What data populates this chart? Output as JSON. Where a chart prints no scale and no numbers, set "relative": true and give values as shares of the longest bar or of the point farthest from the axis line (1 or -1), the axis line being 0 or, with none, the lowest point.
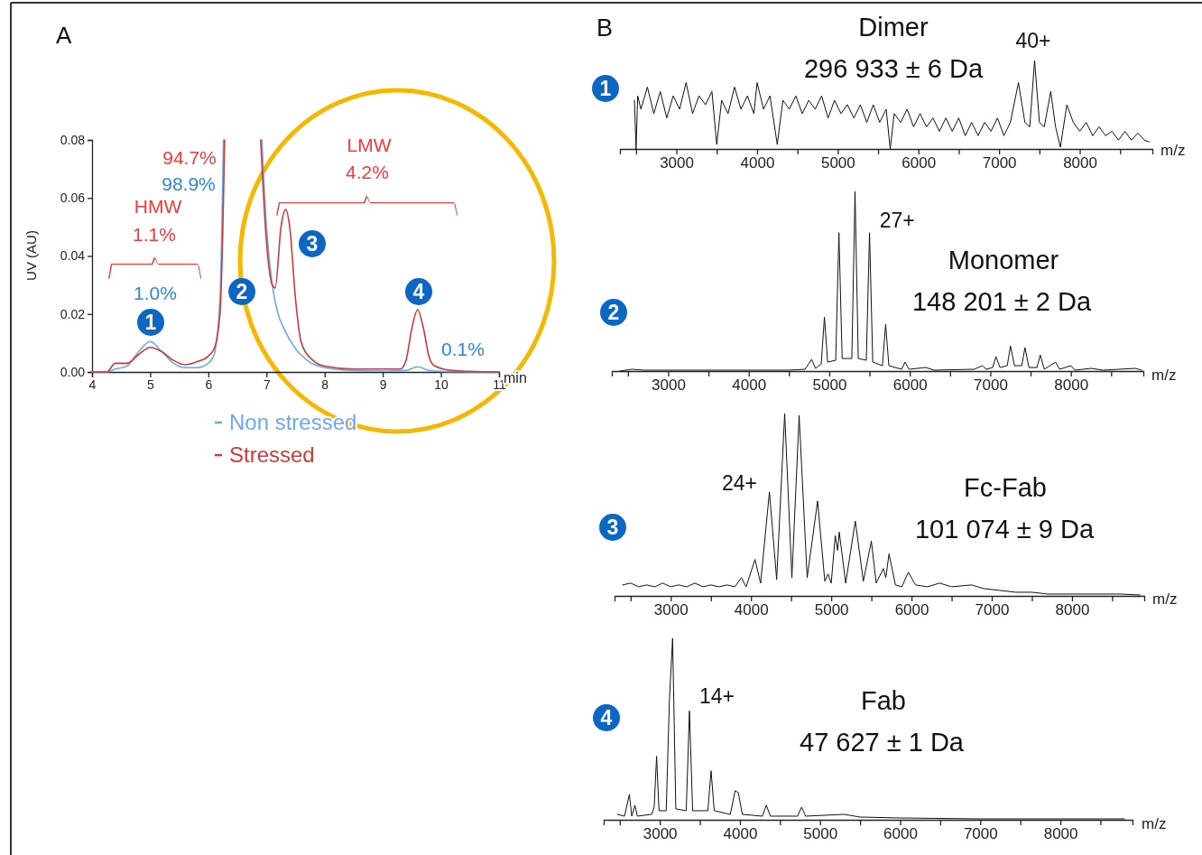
{
  "chart_data": [
    {
      "type": "line",
      "title": "A",
      "xlabel": "min",
      "ylabel": "UV (AU)",
      "xlim": [
        4,
        11
      ],
      "xticks": [
        4,
        5,
        6,
        7,
        8,
        9,
        10,
        11
      ],
      "ylim": [
        0,
        0.08
      ],
      "yticks": [
        {
          "value": 0,
          "label": "0.00"
        },
        {
          "value": 0.02,
          "label": "0.02"
        },
        {
          "value": 0.04,
          "label": "0.04"
        },
        {
          "value": 0.06,
          "label": "0.06"
        },
        {
          "value": 0.08,
          "label": "0.08"
        }
      ],
      "legend": "bottom",
      "series": [
        {
          "name": "Non stressed",
          "color": "#6fa8e6",
          "x": [
            4,
            4.25,
            4.4,
            4.6,
            4.8,
            5.0,
            5.2,
            5.4,
            5.6,
            5.8,
            6.0,
            6.1,
            6.2,
            6.26,
            6.6,
            6.92,
            7.0,
            7.1,
            7.2,
            7.3,
            7.5,
            7.7,
            8.0,
            8.5,
            9.0,
            9.4,
            9.6,
            9.8,
            10,
            11
          ],
          "values": [
            0,
            0,
            0.001,
            0.002,
            0.007,
            0.0105,
            0.007,
            0.003,
            0.0015,
            0.0015,
            0.003,
            0.006,
            0.025,
            0.08,
            null,
            0.08,
            0.05,
            0.03,
            0.02,
            0.015,
            0.008,
            0.004,
            0.0015,
            0.0005,
            0.0003,
            0.0005,
            0.0018,
            0.0005,
            0.0002,
            0
          ]
        },
        {
          "name": "Stressed",
          "color": "#c83c3c",
          "x": [
            4,
            4.25,
            4.4,
            4.6,
            4.8,
            5.0,
            5.2,
            5.4,
            5.6,
            5.8,
            6.0,
            6.1,
            6.2,
            6.25,
            6.28,
            6.6,
            6.9,
            7.0,
            7.1,
            7.15,
            7.25,
            7.33,
            7.4,
            7.5,
            7.6,
            7.8,
            8.0,
            8.5,
            9.0,
            9.3,
            9.4,
            9.5,
            9.6,
            9.7,
            9.8,
            9.9,
            10.2,
            11
          ],
          "values": [
            0,
            0,
            0.003,
            0.003,
            0.006,
            0.0085,
            0.007,
            0.004,
            0.0025,
            0.0035,
            0.0055,
            0.008,
            0.02,
            0.05,
            0.08,
            null,
            0.08,
            0.045,
            0.03,
            0.029,
            0.05,
            0.056,
            0.05,
            0.025,
            0.01,
            0.004,
            0.002,
            0.001,
            0.001,
            0.001,
            0.004,
            0.015,
            0.0215,
            0.015,
            0.005,
            0.002,
            0.0005,
            0
          ]
        }
      ],
      "annotations": [
        "94.7%",
        "98.9%",
        "HMW",
        "1.1%",
        "1.0%",
        "1",
        "2",
        "3",
        "4",
        "LMW",
        "4.2%",
        "0.1%"
      ]
    },
    {
      "type": "line",
      "relative": true,
      "title": "Dimer",
      "subtitle": "296 933 ± 6 Da",
      "xlabel": "m/z",
      "xlim": [
        2300,
        8900
      ],
      "xticks": [
        {
          "value": 2500,
          "label": null
        },
        3000,
        {
          "value": 3500,
          "label": null
        },
        4000,
        {
          "value": 4500,
          "label": null
        },
        5000,
        {
          "value": 5500,
          "label": null
        },
        6000,
        {
          "value": 6500,
          "label": null
        },
        7000,
        {
          "value": 7500,
          "label": null
        },
        8000,
        {
          "value": 8500,
          "label": null
        }
      ],
      "series": [
        {
          "color": "#111111",
          "x": [
            2480,
            2500,
            2520,
            2560,
            2640,
            2720,
            2800,
            2880,
            2960,
            3040,
            3120,
            3200,
            3280,
            3360,
            3440,
            3500,
            3560,
            3640,
            3720,
            3800,
            3880,
            3960,
            4000,
            4080,
            4160,
            4250,
            4320,
            4400,
            4480,
            4560,
            4640,
            4720,
            4800,
            4880,
            4960,
            5040,
            5120,
            5200,
            5280,
            5360,
            5440,
            5520,
            5600,
            5650,
            5700,
            5780,
            5860,
            5940,
            6020,
            6100,
            6180,
            6260,
            6340,
            6420,
            6500,
            6580,
            6660,
            6740,
            6820,
            6900,
            6980,
            7060,
            7140,
            7240,
            7320,
            7380,
            7440,
            7500,
            7560,
            7640,
            7700,
            7760,
            7840,
            7920,
            8000,
            8080,
            8160,
            8240,
            8320,
            8400,
            8480,
            8560,
            8640,
            8720,
            8800,
            8860
          ],
          "values": [
            0.55,
            0.0,
            0.6,
            0.45,
            0.7,
            0.4,
            0.65,
            0.35,
            0.6,
            0.45,
            0.75,
            0.4,
            0.6,
            0.5,
            0.65,
            0.05,
            0.55,
            0.4,
            0.7,
            0.45,
            0.6,
            0.4,
            0.75,
            0.45,
            0.6,
            0.05,
            0.55,
            0.45,
            0.6,
            0.4,
            0.55,
            0.45,
            0.6,
            0.35,
            0.55,
            0.4,
            0.5,
            0.35,
            0.5,
            0.3,
            0.5,
            0.3,
            0.45,
            0.0,
            0.4,
            0.3,
            0.45,
            0.25,
            0.4,
            0.25,
            0.35,
            0.2,
            0.35,
            0.2,
            0.35,
            0.15,
            0.3,
            0.15,
            0.3,
            0.2,
            0.35,
            0.15,
            0.3,
            0.75,
            0.3,
            0.25,
            1.0,
            0.3,
            0.25,
            0.65,
            0.25,
            0.02,
            0.5,
            0.3,
            0.2,
            0.3,
            0.15,
            0.25,
            0.15,
            0.2,
            0.1,
            0.2,
            0.1,
            0.18,
            0.1,
            0.08
          ]
        }
      ],
      "annotations": [
        "B",
        "1",
        {
          "text": "40+",
          "x": 7424,
          "y": 1.0
        }
      ]
    },
    {
      "type": "line",
      "relative": true,
      "title": "Monomer",
      "subtitle": "148 201 ± 2 Da",
      "xlabel": "m/z",
      "xlim": [
        2300,
        8900
      ],
      "xticks": [
        {
          "value": 2500,
          "label": null
        },
        3000,
        {
          "value": 3500,
          "label": null
        },
        4000,
        {
          "value": 4500,
          "label": null
        },
        5000,
        {
          "value": 5500,
          "label": null
        },
        6000,
        {
          "value": 6500,
          "label": null
        },
        7000,
        {
          "value": 7500,
          "label": null
        },
        8000,
        {
          "value": 8500,
          "label": null
        }
      ],
      "series": [
        {
          "color": "#111111",
          "x": [
            2400,
            2550,
            2700,
            3000,
            3500,
            4000,
            4500,
            4700,
            4780,
            4830,
            4900,
            4940,
            4980,
            5080,
            5120,
            5160,
            5280,
            5320,
            5360,
            5460,
            5500,
            5540,
            5660,
            5700,
            5740,
            5900,
            5940,
            5990,
            6200,
            6300,
            6800,
            6900,
            6950,
            7030,
            7070,
            7120,
            7210,
            7250,
            7300,
            7390,
            7430,
            7480,
            7580,
            7620,
            7670,
            7810,
            7860,
            8000,
            8050,
            8250,
            8400,
            8800,
            8880
          ],
          "values": [
            0,
            0.01,
            0.005,
            0.005,
            0.005,
            0.005,
            0.005,
            0.01,
            0.065,
            0.015,
            0.04,
            0.3,
            0.05,
            0.06,
            0.77,
            0.07,
            0.07,
            1.0,
            0.07,
            0.06,
            0.77,
            0.05,
            0.03,
            0.26,
            0.03,
            0.01,
            0.05,
            0.01,
            0.02,
            0.005,
            0.01,
            0.03,
            0.01,
            0.02,
            0.08,
            0.02,
            0.03,
            0.14,
            0.03,
            0.03,
            0.13,
            0.02,
            0.02,
            0.09,
            0.01,
            0.05,
            0.01,
            0.03,
            0.005,
            0.015,
            0.005,
            0.015,
            0.005
          ]
        }
      ],
      "annotations": [
        "2",
        {
          "text": "27+",
          "x": 5490,
          "y": 0.77
        }
      ]
    },
    {
      "type": "line",
      "relative": true,
      "title": "Fc-Fab",
      "subtitle": "101 074 ± 9 Da",
      "xlabel": "m/z",
      "xlim": [
        2300,
        8900
      ],
      "xticks": [
        {
          "value": 2500,
          "label": null
        },
        3000,
        {
          "value": 3500,
          "label": null
        },
        4000,
        {
          "value": 4500,
          "label": null
        },
        5000,
        {
          "value": 5500,
          "label": null
        },
        6000,
        {
          "value": 6500,
          "label": null
        },
        7000,
        {
          "value": 7500,
          "label": null
        },
        8000,
        {
          "value": 8500,
          "label": null
        }
      ],
      "series": [
        {
          "color": "#111111",
          "x": [
            2400,
            2500,
            2600,
            2700,
            2800,
            2900,
            3000,
            3100,
            3200,
            3300,
            3400,
            3500,
            3600,
            3700,
            3800,
            3880,
            3940,
            4050,
            4120,
            4230,
            4320,
            4420,
            4510,
            4600,
            4700,
            4830,
            4920,
            4960,
            5000,
            5050,
            5080,
            5100,
            5180,
            5300,
            5400,
            5500,
            5560,
            5650,
            5680,
            5720,
            5800,
            5880,
            5960,
            6050,
            6200,
            6350,
            6500,
            6750,
            6900,
            7100,
            7300,
            7500,
            7700,
            8000,
            8300,
            8600,
            8850
          ],
          "values": [
            0.06,
            0.07,
            0.05,
            0.06,
            0.05,
            0.07,
            0.05,
            0.06,
            0.05,
            0.07,
            0.05,
            0.06,
            0.05,
            0.06,
            0.05,
            0.1,
            0.05,
            0.2,
            0.07,
            0.57,
            0.09,
            1.0,
            0.1,
            0.99,
            0.1,
            0.52,
            0.08,
            0.12,
            0.07,
            0.33,
            0.25,
            0.35,
            0.07,
            0.41,
            0.08,
            0.3,
            0.07,
            0.15,
            0.1,
            0.23,
            0.06,
            0.05,
            0.13,
            0.06,
            0.05,
            0.07,
            0.05,
            0.06,
            0.04,
            0.03,
            0.02,
            0.02,
            0.01,
            0.01,
            0.01,
            0.01,
            0.005
          ]
        }
      ],
      "annotations": [
        "3",
        {
          "text": "24+",
          "x": 4212,
          "y": 0.57
        }
      ]
    },
    {
      "type": "line",
      "relative": true,
      "title": "Fab",
      "subtitle": "47 627 ± 1 Da",
      "xlabel": "m/z",
      "xlim": [
        2300,
        8900
      ],
      "xticks": [
        {
          "value": 2500,
          "label": null
        },
        3000,
        {
          "value": 3500,
          "label": null
        },
        4000,
        {
          "value": 4500,
          "label": null
        },
        5000,
        {
          "value": 5500,
          "label": null
        },
        6000,
        {
          "value": 6500,
          "label": null
        },
        7000,
        {
          "value": 7500,
          "label": null
        },
        8000,
        {
          "value": 8500,
          "label": null
        }
      ],
      "series": [
        {
          "color": "#111111",
          "x": [
            2470,
            2560,
            2620,
            2650,
            2690,
            2720,
            2900,
            2930,
            2960,
            2990,
            3080,
            3120,
            3160,
            3200,
            3330,
            3370,
            3410,
            3600,
            3640,
            3680,
            3880,
            3940,
            3980,
            4030,
            4280,
            4330,
            4380,
            4720,
            4770,
            4820,
            5300,
            5500,
            6000,
            7000,
            8000,
            8800
          ],
          "values": [
            0.03,
            0.02,
            0.14,
            0.02,
            0.08,
            0.02,
            0.03,
            0.07,
            0.35,
            0.05,
            0.05,
            0.66,
            1.0,
            0.06,
            0.05,
            0.6,
            0.05,
            0.05,
            0.27,
            0.05,
            0.03,
            0.16,
            0.15,
            0.03,
            0.02,
            0.08,
            0.02,
            0.02,
            0.07,
            0.02,
            0.03,
            0.015,
            0.01,
            0.005,
            0.005,
            0.005
          ]
        }
      ],
      "annotations": [
        "4",
        {
          "text": "14+",
          "x": 3403,
          "y": 0.6
        }
      ]
    }
  ]
}
